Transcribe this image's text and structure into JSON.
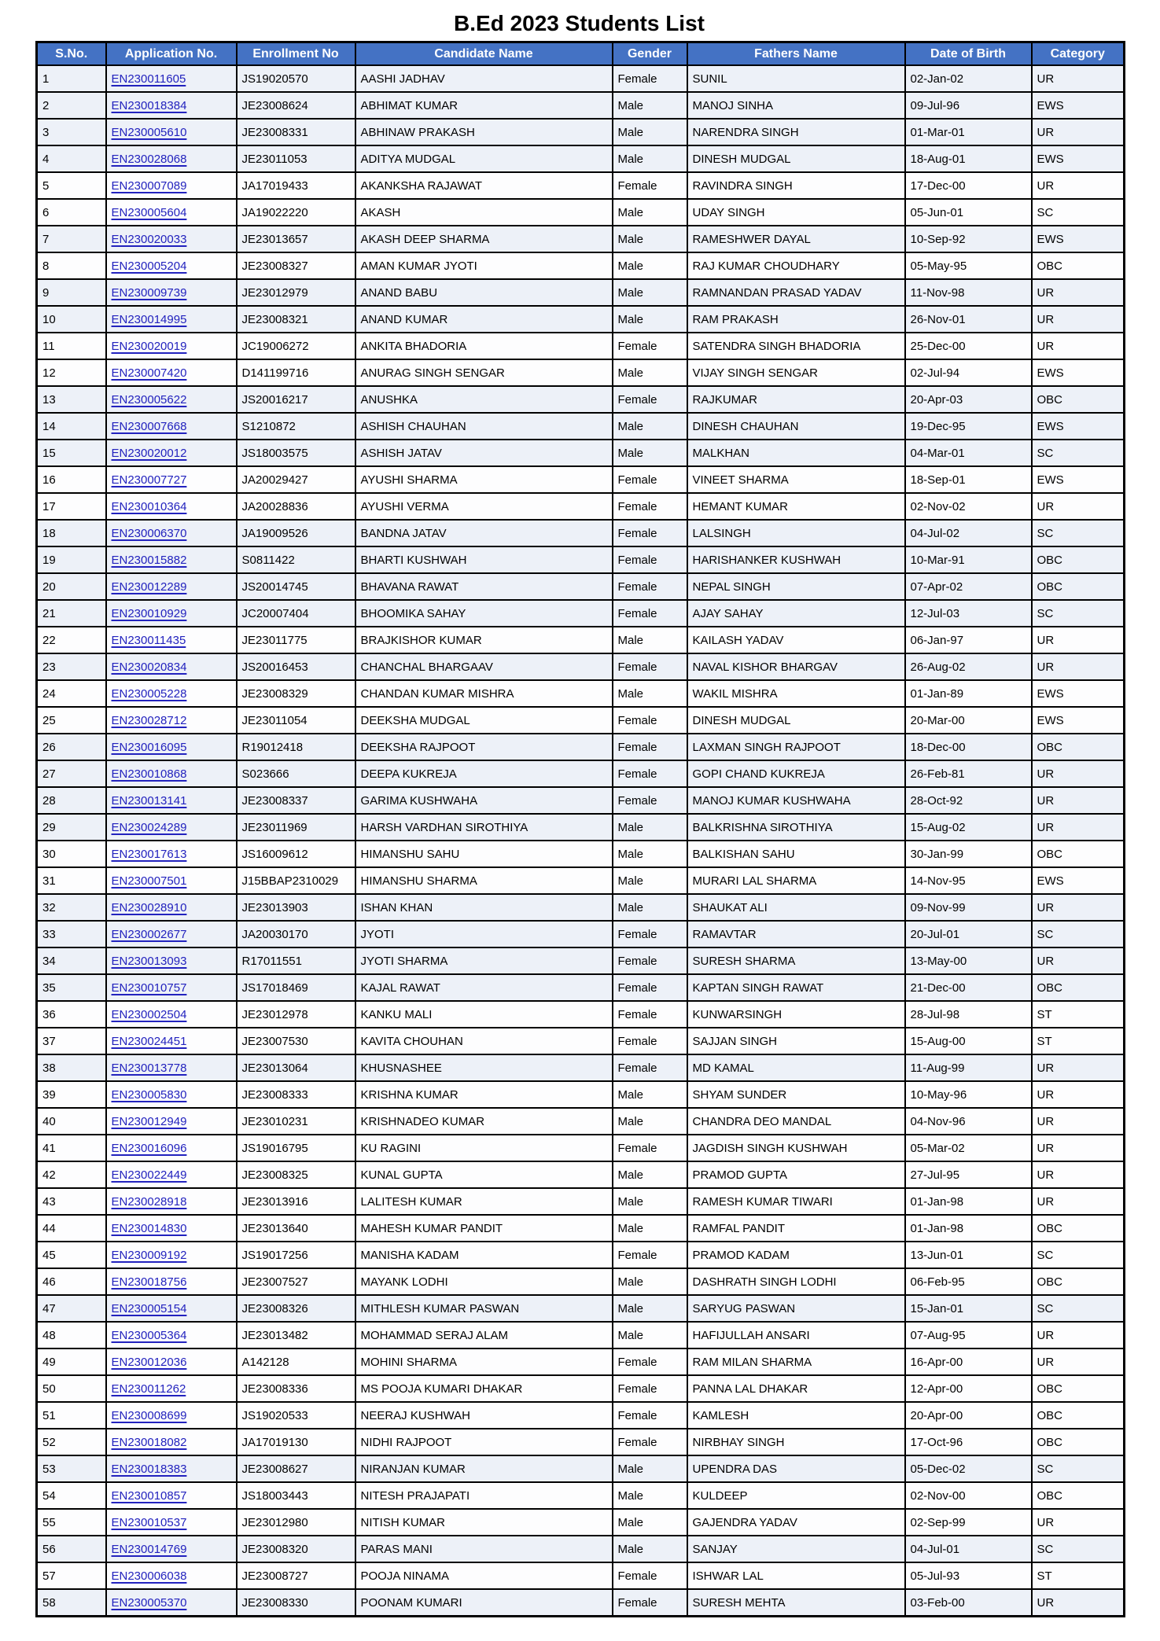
{
  "title": "B.Ed 2023 Students List",
  "colors": {
    "header_bg": "#4472C4",
    "header_text": "#FFFFFF",
    "border": "#000000",
    "link": "#2222BE",
    "row_shaded": "#EDF1F8",
    "row_plain": "#FDFDFE"
  },
  "table": {
    "columns": [
      {
        "key": "sno",
        "label": "S.No."
      },
      {
        "key": "application_no",
        "label": "Application No."
      },
      {
        "key": "enrollment_no",
        "label": "Enrollment No"
      },
      {
        "key": "candidate_name",
        "label": "Candidate Name"
      },
      {
        "key": "gender",
        "label": "Gender"
      },
      {
        "key": "fathers_name",
        "label": "Fathers Name"
      },
      {
        "key": "date_of_birth",
        "label": "Date of Birth"
      },
      {
        "key": "category",
        "label": "Category"
      }
    ],
    "rows": [
      {
        "sno": "1",
        "application_no": "EN230011605",
        "enrollment_no": "JS19020570",
        "candidate_name": "AASHI JADHAV",
        "gender": "Female",
        "fathers_name": "SUNIL",
        "date_of_birth": "02-Jan-02",
        "category": "UR",
        "shaded": true
      },
      {
        "sno": "2",
        "application_no": "EN230018384",
        "enrollment_no": "JE23008624",
        "candidate_name": "ABHIMAT KUMAR",
        "gender": "Male",
        "fathers_name": "MANOJ SINHA",
        "date_of_birth": "09-Jul-96",
        "category": "EWS",
        "shaded": true
      },
      {
        "sno": "3",
        "application_no": "EN230005610",
        "enrollment_no": "JE23008331",
        "candidate_name": "ABHINAW PRAKASH",
        "gender": "Male",
        "fathers_name": "NARENDRA SINGH",
        "date_of_birth": "01-Mar-01",
        "category": "UR",
        "shaded": true
      },
      {
        "sno": "4",
        "application_no": "EN230028068",
        "enrollment_no": "JE23011053",
        "candidate_name": "ADITYA MUDGAL",
        "gender": "Male",
        "fathers_name": "DINESH MUDGAL",
        "date_of_birth": "18-Aug-01",
        "category": "EWS",
        "shaded": true
      },
      {
        "sno": "5",
        "application_no": "EN230007089",
        "enrollment_no": "JA17019433",
        "candidate_name": "AKANKSHA RAJAWAT",
        "gender": "Female",
        "fathers_name": "RAVINDRA SINGH",
        "date_of_birth": "17-Dec-00",
        "category": "UR",
        "shaded": false
      },
      {
        "sno": "6",
        "application_no": "EN230005604",
        "enrollment_no": "JA19022220",
        "candidate_name": "AKASH",
        "gender": "Male",
        "fathers_name": "UDAY SINGH",
        "date_of_birth": "05-Jun-01",
        "category": "SC",
        "shaded": false
      },
      {
        "sno": "7",
        "application_no": "EN230020033",
        "enrollment_no": "JE23013657",
        "candidate_name": "AKASH DEEP SHARMA",
        "gender": "Male",
        "fathers_name": "RAMESHWER DAYAL",
        "date_of_birth": "10-Sep-92",
        "category": "EWS",
        "shaded": true
      },
      {
        "sno": "8",
        "application_no": "EN230005204",
        "enrollment_no": "JE23008327",
        "candidate_name": "AMAN KUMAR JYOTI",
        "gender": "Male",
        "fathers_name": "RAJ KUMAR CHOUDHARY",
        "date_of_birth": "05-May-95",
        "category": "OBC",
        "shaded": false
      },
      {
        "sno": "9",
        "application_no": "EN230009739",
        "enrollment_no": "JE23012979",
        "candidate_name": "ANAND BABU",
        "gender": "Male",
        "fathers_name": "RAMNANDAN PRASAD YADAV",
        "date_of_birth": "11-Nov-98",
        "category": "UR",
        "shaded": true
      },
      {
        "sno": "10",
        "application_no": "EN230014995",
        "enrollment_no": "JE23008321",
        "candidate_name": "ANAND KUMAR",
        "gender": "Male",
        "fathers_name": "RAM PRAKASH",
        "date_of_birth": "26-Nov-01",
        "category": "UR",
        "shaded": true
      },
      {
        "sno": "11",
        "application_no": "EN230020019",
        "enrollment_no": "JC19006272",
        "candidate_name": "ANKITA BHADORIA",
        "gender": "Female",
        "fathers_name": "SATENDRA SINGH BHADORIA",
        "date_of_birth": "25-Dec-00",
        "category": "UR",
        "shaded": false
      },
      {
        "sno": "12",
        "application_no": "EN230007420",
        "enrollment_no": "D141199716",
        "candidate_name": "ANURAG SINGH SENGAR",
        "gender": "Male",
        "fathers_name": "VIJAY SINGH SENGAR",
        "date_of_birth": "02-Jul-94",
        "category": "EWS",
        "shaded": false
      },
      {
        "sno": "13",
        "application_no": "EN230005622",
        "enrollment_no": "JS20016217",
        "candidate_name": "ANUSHKA",
        "gender": "Female",
        "fathers_name": "RAJKUMAR",
        "date_of_birth": "20-Apr-03",
        "category": "OBC",
        "shaded": true
      },
      {
        "sno": "14",
        "application_no": "EN230007668",
        "enrollment_no": "S1210872",
        "candidate_name": "ASHISH CHAUHAN",
        "gender": "Male",
        "fathers_name": "DINESH CHAUHAN",
        "date_of_birth": "19-Dec-95",
        "category": "EWS",
        "shaded": true
      },
      {
        "sno": "15",
        "application_no": "EN230020012",
        "enrollment_no": "JS18003575",
        "candidate_name": "ASHISH JATAV",
        "gender": "Male",
        "fathers_name": "MALKHAN",
        "date_of_birth": "04-Mar-01",
        "category": "SC",
        "shaded": true
      },
      {
        "sno": "16",
        "application_no": "EN230007727",
        "enrollment_no": "JA20029427",
        "candidate_name": "AYUSHI SHARMA",
        "gender": "Female",
        "fathers_name": "VINEET SHARMA",
        "date_of_birth": "18-Sep-01",
        "category": "EWS",
        "shaded": false
      },
      {
        "sno": "17",
        "application_no": "EN230010364",
        "enrollment_no": "JA20028836",
        "candidate_name": "AYUSHI VERMA",
        "gender": "Female",
        "fathers_name": "HEMANT KUMAR",
        "date_of_birth": "02-Nov-02",
        "category": "UR",
        "shaded": false
      },
      {
        "sno": "18",
        "application_no": "EN230006370",
        "enrollment_no": "JA19009526",
        "candidate_name": "BANDNA JATAV",
        "gender": "Female",
        "fathers_name": "LALSINGH",
        "date_of_birth": "04-Jul-02",
        "category": "SC",
        "shaded": true
      },
      {
        "sno": "19",
        "application_no": "EN230015882",
        "enrollment_no": "S0811422",
        "candidate_name": "BHARTI KUSHWAH",
        "gender": "Female",
        "fathers_name": "HARISHANKER KUSHWAH",
        "date_of_birth": "10-Mar-91",
        "category": "OBC",
        "shaded": true
      },
      {
        "sno": "20",
        "application_no": "EN230012289",
        "enrollment_no": "JS20014745",
        "candidate_name": "BHAVANA RAWAT",
        "gender": "Female",
        "fathers_name": "NEPAL SINGH",
        "date_of_birth": "07-Apr-02",
        "category": "OBC",
        "shaded": true
      },
      {
        "sno": "21",
        "application_no": "EN230010929",
        "enrollment_no": "JC20007404",
        "candidate_name": "BHOOMIKA SAHAY",
        "gender": "Female",
        "fathers_name": "AJAY SAHAY",
        "date_of_birth": "12-Jul-03",
        "category": "SC",
        "shaded": true
      },
      {
        "sno": "22",
        "application_no": "EN230011435",
        "enrollment_no": "JE23011775",
        "candidate_name": "BRAJKISHOR KUMAR",
        "gender": "Male",
        "fathers_name": "KAILASH YADAV",
        "date_of_birth": "06-Jan-97",
        "category": "UR",
        "shaded": false
      },
      {
        "sno": "23",
        "application_no": "EN230020834",
        "enrollment_no": "JS20016453",
        "candidate_name": "CHANCHAL BHARGAAV",
        "gender": "Female",
        "fathers_name": "NAVAL KISHOR BHARGAV",
        "date_of_birth": "26-Aug-02",
        "category": "UR",
        "shaded": true
      },
      {
        "sno": "24",
        "application_no": "EN230005228",
        "enrollment_no": "JE23008329",
        "candidate_name": "CHANDAN KUMAR MISHRA",
        "gender": "Male",
        "fathers_name": "WAKIL MISHRA",
        "date_of_birth": "01-Jan-89",
        "category": "EWS",
        "shaded": false
      },
      {
        "sno": "25",
        "application_no": "EN230028712",
        "enrollment_no": "JE23011054",
        "candidate_name": "DEEKSHA MUDGAL",
        "gender": "Female",
        "fathers_name": "DINESH MUDGAL",
        "date_of_birth": "20-Mar-00",
        "category": "EWS",
        "shaded": false
      },
      {
        "sno": "26",
        "application_no": "EN230016095",
        "enrollment_no": "R19012418",
        "candidate_name": "DEEKSHA RAJPOOT",
        "gender": "Female",
        "fathers_name": "LAXMAN SINGH RAJPOOT",
        "date_of_birth": "18-Dec-00",
        "category": "OBC",
        "shaded": true
      },
      {
        "sno": "27",
        "application_no": "EN230010868",
        "enrollment_no": "S023666",
        "candidate_name": "DEEPA KUKREJA",
        "gender": "Female",
        "fathers_name": "GOPI CHAND KUKREJA",
        "date_of_birth": "26-Feb-81",
        "category": "UR",
        "shaded": true
      },
      {
        "sno": "28",
        "application_no": "EN230013141",
        "enrollment_no": "JE23008337",
        "candidate_name": "GARIMA KUSHWAHA",
        "gender": "Female",
        "fathers_name": "MANOJ KUMAR KUSHWAHA",
        "date_of_birth": "28-Oct-92",
        "category": "UR",
        "shaded": true
      },
      {
        "sno": "29",
        "application_no": "EN230024289",
        "enrollment_no": "JE23011969",
        "candidate_name": "HARSH VARDHAN SIROTHIYA",
        "gender": "Male",
        "fathers_name": "BALKRISHNA SIROTHIYA",
        "date_of_birth": "15-Aug-02",
        "category": "UR",
        "shaded": true
      },
      {
        "sno": "30",
        "application_no": "EN230017613",
        "enrollment_no": "JS16009612",
        "candidate_name": "HIMANSHU SAHU",
        "gender": "Male",
        "fathers_name": "BALKISHAN SAHU",
        "date_of_birth": "30-Jan-99",
        "category": "OBC",
        "shaded": false
      },
      {
        "sno": "31",
        "application_no": "EN230007501",
        "enrollment_no": "J15BBAP2310029",
        "candidate_name": "HIMANSHU SHARMA",
        "gender": "Male",
        "fathers_name": "MURARI LAL SHARMA",
        "date_of_birth": "14-Nov-95",
        "category": "EWS",
        "shaded": false
      },
      {
        "sno": "32",
        "application_no": "EN230028910",
        "enrollment_no": "JE23013903",
        "candidate_name": "ISHAN KHAN",
        "gender": "Male",
        "fathers_name": "SHAUKAT ALI",
        "date_of_birth": "09-Nov-99",
        "category": "UR",
        "shaded": true
      },
      {
        "sno": "33",
        "application_no": "EN230002677",
        "enrollment_no": "JA20030170",
        "candidate_name": "JYOTI",
        "gender": "Female",
        "fathers_name": "RAMAVTAR",
        "date_of_birth": "20-Jul-01",
        "category": "SC",
        "shaded": true
      },
      {
        "sno": "34",
        "application_no": "EN230013093",
        "enrollment_no": "R17011551",
        "candidate_name": "JYOTI SHARMA",
        "gender": "Female",
        "fathers_name": "SURESH SHARMA",
        "date_of_birth": "13-May-00",
        "category": "UR",
        "shaded": true
      },
      {
        "sno": "35",
        "application_no": "EN230010757",
        "enrollment_no": "JS17018469",
        "candidate_name": "KAJAL RAWAT",
        "gender": "Female",
        "fathers_name": "KAPTAN SINGH RAWAT",
        "date_of_birth": "21-Dec-00",
        "category": "OBC",
        "shaded": true
      },
      {
        "sno": "36",
        "application_no": "EN230002504",
        "enrollment_no": "JE23012978",
        "candidate_name": "KANKU MALI",
        "gender": "Female",
        "fathers_name": "KUNWARSINGH",
        "date_of_birth": "28-Jul-98",
        "category": "ST",
        "shaded": false
      },
      {
        "sno": "37",
        "application_no": "EN230024451",
        "enrollment_no": "JE23007530",
        "candidate_name": "KAVITA CHOUHAN",
        "gender": "Female",
        "fathers_name": "SAJJAN SINGH",
        "date_of_birth": "15-Aug-00",
        "category": "ST",
        "shaded": false
      },
      {
        "sno": "38",
        "application_no": "EN230013778",
        "enrollment_no": "JE23013064",
        "candidate_name": "KHUSNASHEE",
        "gender": "Female",
        "fathers_name": "MD KAMAL",
        "date_of_birth": "11-Aug-99",
        "category": "UR",
        "shaded": true
      },
      {
        "sno": "39",
        "application_no": "EN230005830",
        "enrollment_no": "JE23008333",
        "candidate_name": "KRISHNA KUMAR",
        "gender": "Male",
        "fathers_name": "SHYAM SUNDER",
        "date_of_birth": "10-May-96",
        "category": "UR",
        "shaded": false
      },
      {
        "sno": "40",
        "application_no": "EN230012949",
        "enrollment_no": "JE23010231",
        "candidate_name": "KRISHNADEO KUMAR",
        "gender": "Male",
        "fathers_name": "CHANDRA DEO MANDAL",
        "date_of_birth": "04-Nov-96",
        "category": "UR",
        "shaded": false
      },
      {
        "sno": "41",
        "application_no": "EN230016096",
        "enrollment_no": "JS19016795",
        "candidate_name": "KU RAGINI",
        "gender": "Female",
        "fathers_name": "JAGDISH SINGH KUSHWAH",
        "date_of_birth": "05-Mar-02",
        "category": "UR",
        "shaded": false
      },
      {
        "sno": "42",
        "application_no": "EN230022449",
        "enrollment_no": "JE23008325",
        "candidate_name": "KUNAL GUPTA",
        "gender": "Male",
        "fathers_name": "PRAMOD GUPTA",
        "date_of_birth": "27-Jul-95",
        "category": "UR",
        "shaded": false
      },
      {
        "sno": "43",
        "application_no": "EN230028918",
        "enrollment_no": "JE23013916",
        "candidate_name": "LALITESH KUMAR",
        "gender": "Male",
        "fathers_name": "RAMESH KUMAR TIWARI",
        "date_of_birth": "01-Jan-98",
        "category": "UR",
        "shaded": false
      },
      {
        "sno": "44",
        "application_no": "EN230014830",
        "enrollment_no": "JE23013640",
        "candidate_name": "MAHESH KUMAR PANDIT",
        "gender": "Male",
        "fathers_name": "RAMFAL PANDIT",
        "date_of_birth": "01-Jan-98",
        "category": "OBC",
        "shaded": false
      },
      {
        "sno": "45",
        "application_no": "EN230009192",
        "enrollment_no": "JS19017256",
        "candidate_name": "MANISHA KADAM",
        "gender": "Female",
        "fathers_name": "PRAMOD KADAM",
        "date_of_birth": "13-Jun-01",
        "category": "SC",
        "shaded": false
      },
      {
        "sno": "46",
        "application_no": "EN230018756",
        "enrollment_no": "JE23007527",
        "candidate_name": "MAYANK LODHI",
        "gender": "Male",
        "fathers_name": "DASHRATH SINGH LODHI",
        "date_of_birth": "06-Feb-95",
        "category": "OBC",
        "shaded": false
      },
      {
        "sno": "47",
        "application_no": "EN230005154",
        "enrollment_no": "JE23008326",
        "candidate_name": "MITHLESH KUMAR PASWAN",
        "gender": "Male",
        "fathers_name": "SARYUG PASWAN",
        "date_of_birth": "15-Jan-01",
        "category": "SC",
        "shaded": true
      },
      {
        "sno": "48",
        "application_no": "EN230005364",
        "enrollment_no": "JE23013482",
        "candidate_name": "MOHAMMAD SERAJ ALAM",
        "gender": "Male",
        "fathers_name": "HAFIJULLAH ANSARI",
        "date_of_birth": "07-Aug-95",
        "category": "UR",
        "shaded": false
      },
      {
        "sno": "49",
        "application_no": "EN230012036",
        "enrollment_no": "A142128",
        "candidate_name": "MOHINI SHARMA",
        "gender": "Female",
        "fathers_name": "RAM MILAN SHARMA",
        "date_of_birth": "16-Apr-00",
        "category": "UR",
        "shaded": false
      },
      {
        "sno": "50",
        "application_no": "EN230011262",
        "enrollment_no": "JE23008336",
        "candidate_name": "MS POOJA KUMARI DHAKAR",
        "gender": "Female",
        "fathers_name": "PANNA LAL DHAKAR",
        "date_of_birth": "12-Apr-00",
        "category": "OBC",
        "shaded": false
      },
      {
        "sno": "51",
        "application_no": "EN230008699",
        "enrollment_no": "JS19020533",
        "candidate_name": "NEERAJ KUSHWAH",
        "gender": "Female",
        "fathers_name": "KAMLESH",
        "date_of_birth": "20-Apr-00",
        "category": "OBC",
        "shaded": false
      },
      {
        "sno": "52",
        "application_no": "EN230018082",
        "enrollment_no": "JA17019130",
        "candidate_name": "NIDHI RAJPOOT",
        "gender": "Female",
        "fathers_name": "NIRBHAY SINGH",
        "date_of_birth": "17-Oct-96",
        "category": "OBC",
        "shaded": false
      },
      {
        "sno": "53",
        "application_no": "EN230018383",
        "enrollment_no": "JE23008627",
        "candidate_name": "NIRANJAN KUMAR",
        "gender": "Male",
        "fathers_name": "UPENDRA DAS",
        "date_of_birth": "05-Dec-02",
        "category": "SC",
        "shaded": true
      },
      {
        "sno": "54",
        "application_no": "EN230010857",
        "enrollment_no": "JS18003443",
        "candidate_name": "NITESH PRAJAPATI",
        "gender": "Male",
        "fathers_name": "KULDEEP",
        "date_of_birth": "02-Nov-00",
        "category": "OBC",
        "shaded": false
      },
      {
        "sno": "55",
        "application_no": "EN230010537",
        "enrollment_no": "JE23012980",
        "candidate_name": "NITISH KUMAR",
        "gender": "Male",
        "fathers_name": "GAJENDRA YADAV",
        "date_of_birth": "02-Sep-99",
        "category": "UR",
        "shaded": false
      },
      {
        "sno": "56",
        "application_no": "EN230014769",
        "enrollment_no": "JE23008320",
        "candidate_name": "PARAS MANI",
        "gender": "Male",
        "fathers_name": "SANJAY",
        "date_of_birth": "04-Jul-01",
        "category": "SC",
        "shaded": true
      },
      {
        "sno": "57",
        "application_no": "EN230006038",
        "enrollment_no": "JE23008727",
        "candidate_name": "POOJA NINAMA",
        "gender": "Female",
        "fathers_name": "ISHWAR LAL",
        "date_of_birth": "05-Jul-93",
        "category": "ST",
        "shaded": false
      },
      {
        "sno": "58",
        "application_no": "EN230005370",
        "enrollment_no": "JE23008330",
        "candidate_name": "POONAM KUMARI",
        "gender": "Female",
        "fathers_name": "SURESH MEHTA",
        "date_of_birth": "03-Feb-00",
        "category": "UR",
        "shaded": true
      }
    ]
  }
}
